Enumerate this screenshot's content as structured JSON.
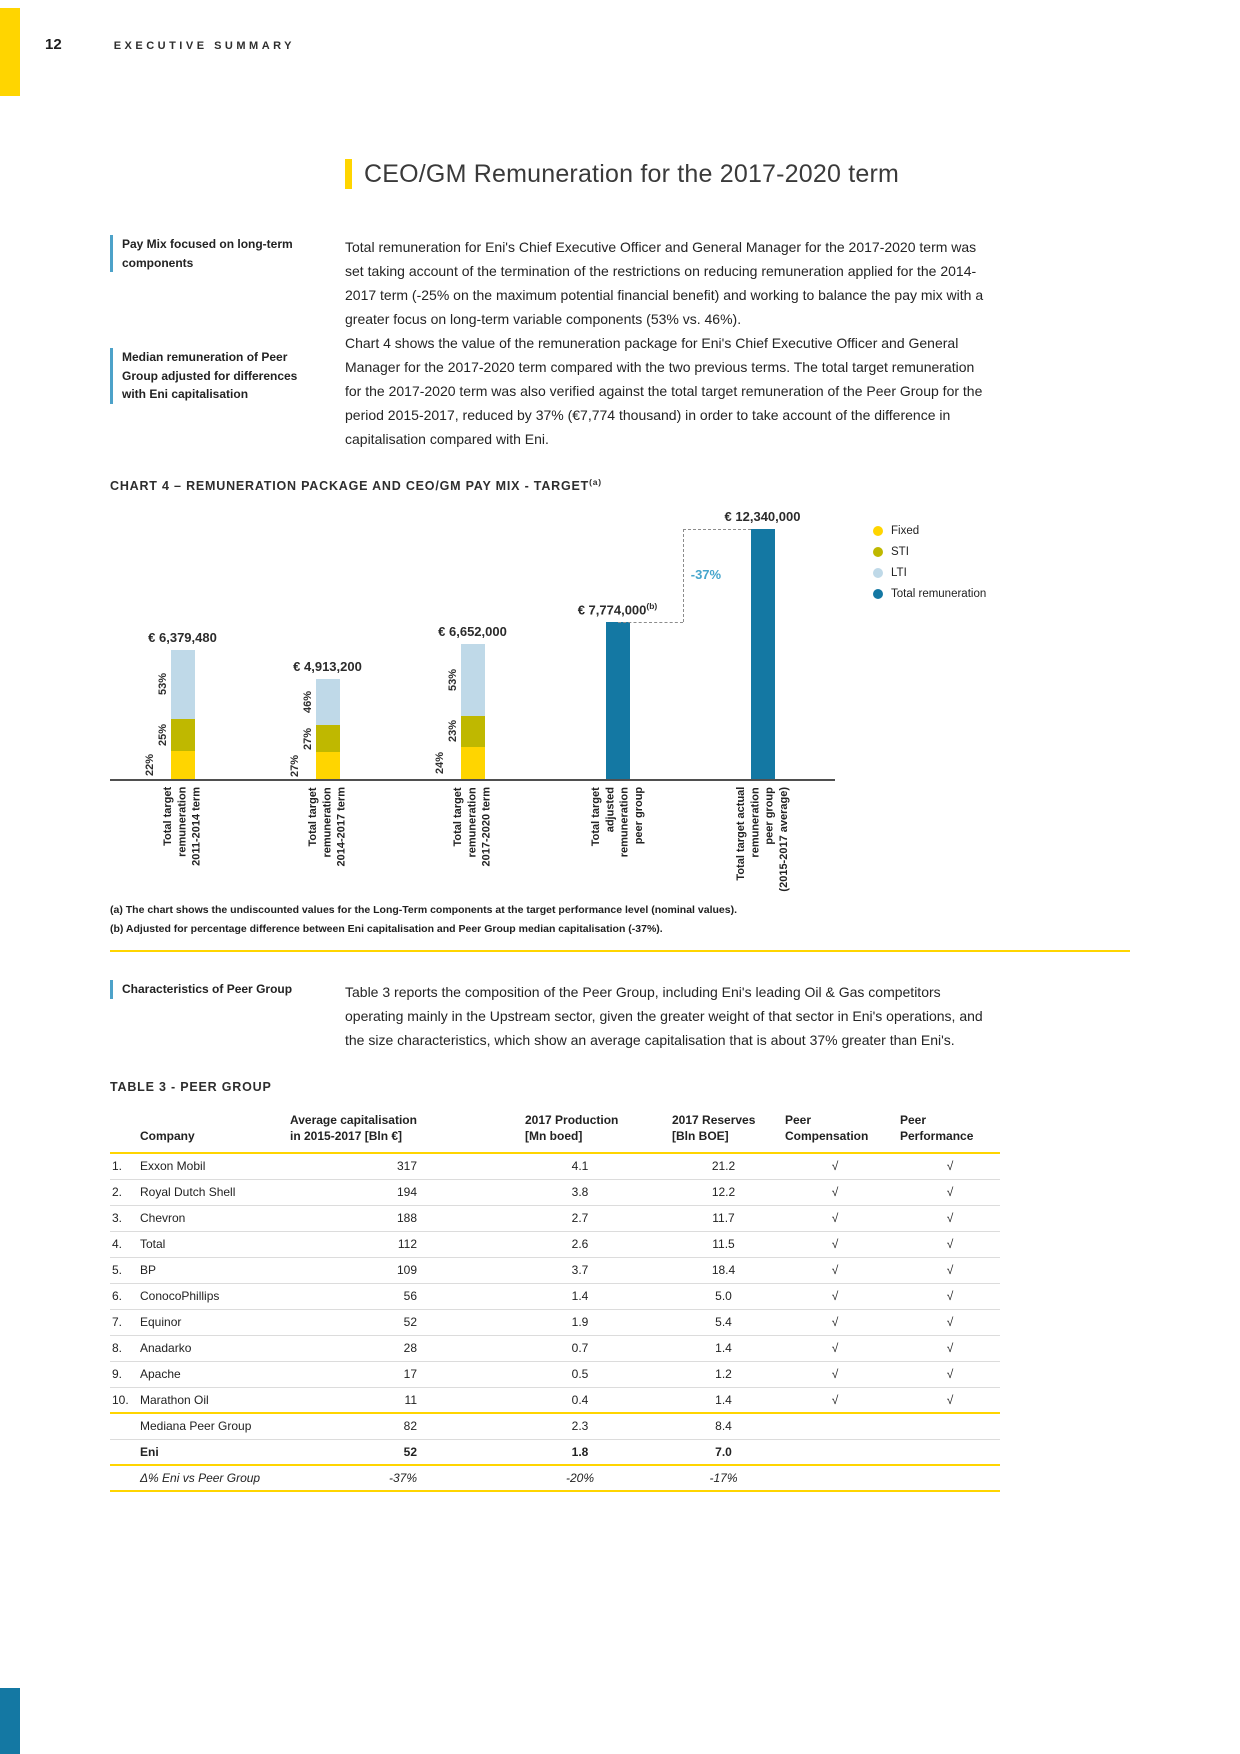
{
  "colors": {
    "accent_yellow": "#FFD500",
    "accent_blue": "#4DA2C9",
    "teal": "#1478A3",
    "seg_fixed": "#FFD500",
    "seg_sti": "#BFB800",
    "seg_lti": "#BFD9E8",
    "annotation": "#45A5CC"
  },
  "page": {
    "number": "12",
    "section": "EXECUTIVE SUMMARY"
  },
  "title": "CEO/GM Remuneration for the 2017-2020 term",
  "sidenotes": [
    {
      "text": "Pay Mix focused on long-term components"
    },
    {
      "text": "Median remuneration of Peer Group adjusted for differences with Eni capitalisation"
    },
    {
      "text": "Characteristics of Peer Group"
    }
  ],
  "paragraphs": {
    "p1": "Total remuneration for Eni's Chief Executive Officer and General Manager for the 2017-2020 term was set taking account of the termination of the restrictions on reducing remuneration applied for the 2014-2017 term (-25% on the maximum potential financial benefit) and working to balance the pay mix with a greater focus on long-term variable components (53% vs. 46%).",
    "p2": "Chart 4 shows the value of the remuneration package for Eni's Chief Executive Officer and General Manager for the 2017-2020 term compared with the two previous terms. The total target remuneration for the 2017-2020 term was also verified against the total target remuneration of the Peer Group for the period 2015-2017, reduced by 37% (€7,774 thousand) in order to take account of the difference in capitalisation compared with Eni.",
    "p3": "Table 3 reports the composition of the Peer Group, including Eni's leading Oil & Gas competitors operating mainly in the Upstream sector, given the greater weight of that sector in Eni's operations, and the size characteristics, which show an average capitalisation that is about 37% greater than Eni's."
  },
  "chart": {
    "heading": "CHART 4 – REMUNERATION PACKAGE AND CEO/GM PAY MIX - TARGET",
    "heading_sup": "(a)",
    "footnotes": [
      "(a) The chart shows the undiscounted values for the Long-Term components at the target performance level (nominal values).",
      "(b) Adjusted for percentage difference between Eni capitalisation and Peer Group median capitalisation (-37%)."
    ]
  },
  "chart_data": {
    "type": "bar",
    "title": "CHART 4 – REMUNERATION PACKAGE AND CEO/GM PAY MIX - TARGET(a)",
    "ylim": [
      0,
      12340000
    ],
    "annotation": "-37%",
    "legend_position": "right",
    "legend": [
      {
        "label": "Fixed",
        "color": "#FFD500"
      },
      {
        "label": "STI",
        "color": "#BFB800"
      },
      {
        "label": "LTI",
        "color": "#BFD9E8"
      },
      {
        "label": "Total remuneration",
        "color": "#1478A3"
      }
    ],
    "bars": [
      {
        "label": "Total target\nremuneration\n2011-2014 term",
        "total": 6379480,
        "value_label": "€ 6,379,480",
        "segments": [
          {
            "name": "Fixed",
            "pct": 22
          },
          {
            "name": "STI",
            "pct": 25
          },
          {
            "name": "LTI",
            "pct": 53
          }
        ]
      },
      {
        "label": "Total target\nremuneration\n2014-2017 term",
        "total": 4913200,
        "value_label": "€ 4,913,200",
        "segments": [
          {
            "name": "Fixed",
            "pct": 27
          },
          {
            "name": "STI",
            "pct": 27
          },
          {
            "name": "LTI",
            "pct": 46
          }
        ]
      },
      {
        "label": "Total target\nremuneration\n2017-2020 term",
        "total": 6652000,
        "value_label": "€ 6,652,000",
        "segments": [
          {
            "name": "Fixed",
            "pct": 24
          },
          {
            "name": "STI",
            "pct": 23
          },
          {
            "name": "LTI",
            "pct": 53
          }
        ]
      },
      {
        "label": "Total target\nadjusted\nremuneration\npeer group",
        "total": 7774000,
        "value_label": "€ 7,774,000",
        "value_sup": "(b)",
        "solid": true
      },
      {
        "label": "Total target actual\nremuneration\npeer group\n(2015-2017 average)",
        "total": 12340000,
        "value_label": "€ 12,340,000",
        "solid": true
      }
    ]
  },
  "table": {
    "heading": "TABLE 3 - PEER GROUP",
    "headers": {
      "company": "Company",
      "cap": [
        "Average capitalisation",
        "in 2015-2017 [Bln €]"
      ],
      "prod": [
        "2017 Production",
        "[Mn boed]"
      ],
      "res": [
        "2017 Reserves",
        "[Bln BOE]"
      ],
      "comp": [
        "Peer",
        "Compensation"
      ],
      "perf": [
        "Peer",
        "Performance"
      ]
    },
    "rows": [
      {
        "num": "1.",
        "company": "Exxon Mobil",
        "cap": "317",
        "prod": "4.1",
        "res": "21.2",
        "comp": "√",
        "perf": "√",
        "border": "gray"
      },
      {
        "num": "2.",
        "company": "Royal Dutch Shell",
        "cap": "194",
        "prod": "3.8",
        "res": "12.2",
        "comp": "√",
        "perf": "√",
        "border": "gray"
      },
      {
        "num": "3.",
        "company": "Chevron",
        "cap": "188",
        "prod": "2.7",
        "res": "11.7",
        "comp": "√",
        "perf": "√",
        "border": "gray"
      },
      {
        "num": "4.",
        "company": "Total",
        "cap": "112",
        "prod": "2.6",
        "res": "11.5",
        "comp": "√",
        "perf": "√",
        "border": "gray"
      },
      {
        "num": "5.",
        "company": "BP",
        "cap": "109",
        "prod": "3.7",
        "res": "18.4",
        "comp": "√",
        "perf": "√",
        "border": "gray"
      },
      {
        "num": "6.",
        "company": "ConocoPhillips",
        "cap": "56",
        "prod": "1.4",
        "res": "5.0",
        "comp": "√",
        "perf": "√",
        "border": "gray"
      },
      {
        "num": "7.",
        "company": "Equinor",
        "cap": "52",
        "prod": "1.9",
        "res": "5.4",
        "comp": "√",
        "perf": "√",
        "border": "gray"
      },
      {
        "num": "8.",
        "company": "Anadarko",
        "cap": "28",
        "prod": "0.7",
        "res": "1.4",
        "comp": "√",
        "perf": "√",
        "border": "gray"
      },
      {
        "num": "9.",
        "company": "Apache",
        "cap": "17",
        "prod": "0.5",
        "res": "1.2",
        "comp": "√",
        "perf": "√",
        "border": "gray"
      },
      {
        "num": "10.",
        "company": "Marathon Oil",
        "cap": "11",
        "prod": "0.4",
        "res": "1.4",
        "comp": "√",
        "perf": "√",
        "border": "yellow"
      },
      {
        "num": "",
        "company": "Mediana Peer Group",
        "cap": "82",
        "prod": "2.3",
        "res": "8.4",
        "comp": "",
        "perf": "",
        "border": "gray"
      },
      {
        "num": "",
        "company": "Eni",
        "cap": "52",
        "prod": "1.8",
        "res": "7.0",
        "comp": "",
        "perf": "",
        "style": "eni",
        "border": "yellow"
      },
      {
        "num": "",
        "company": "Δ% Eni vs Peer Group",
        "cap": "-37%",
        "prod": "-20%",
        "res": "-17%",
        "comp": "",
        "perf": "",
        "style": "delta",
        "border": "yellow"
      }
    ]
  }
}
